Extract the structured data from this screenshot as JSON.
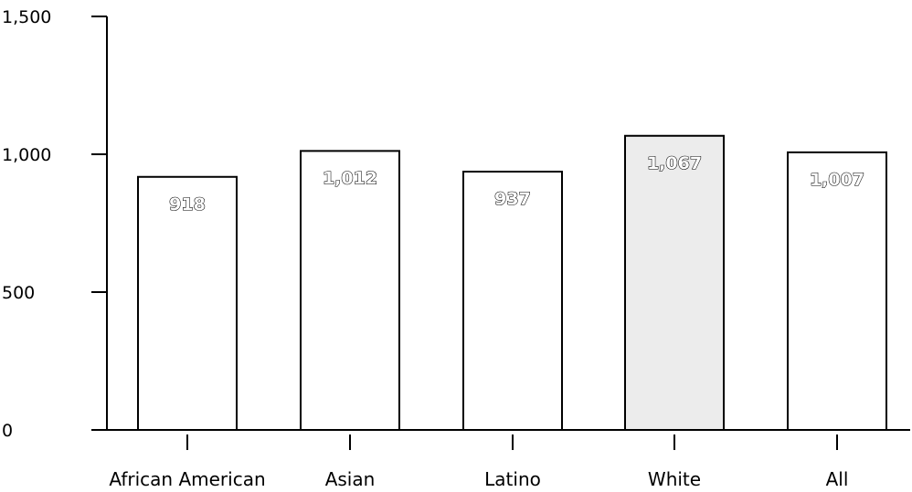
{
  "chart_data": {
    "type": "bar",
    "title": "",
    "xlabel": "",
    "ylabel": "",
    "categories": [
      "African American",
      "Asian",
      "Latino",
      "White",
      "All"
    ],
    "values": [
      918,
      1012,
      937,
      1067,
      1007
    ],
    "data_labels": [
      "918",
      "1,012",
      "937",
      "1,067",
      "1,007"
    ],
    "ylim": [
      0,
      1500
    ],
    "y_ticks": [
      0,
      500,
      1000,
      1500
    ],
    "y_tick_labels": [
      "0",
      "500",
      "1,000",
      "1,500"
    ],
    "grid": false,
    "legend": "none",
    "colors": {
      "bar_fill": "#ffffff",
      "bar_stroke": "#000000",
      "highlight_fill": "#ececec",
      "axis": "#000000"
    }
  }
}
